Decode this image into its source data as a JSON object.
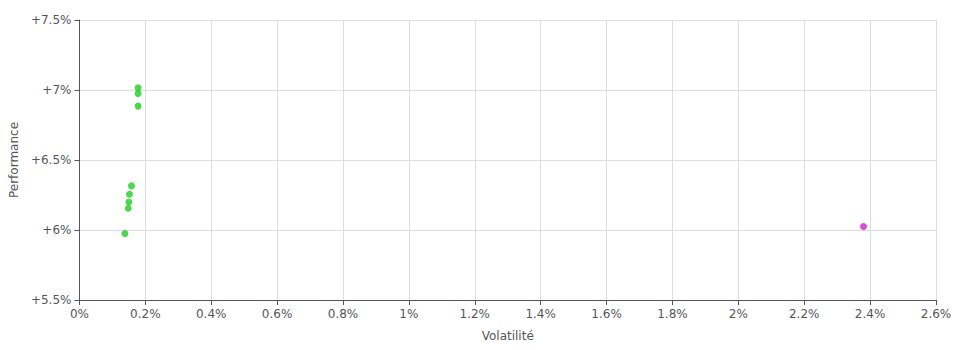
{
  "chart_data": {
    "type": "scatter",
    "xlabel": "Volatilité",
    "ylabel": "Performance",
    "xlim": [
      0.0,
      0.026
    ],
    "ylim": [
      0.055,
      0.075
    ],
    "xticks": [
      {
        "value": 0.0,
        "label": "0%"
      },
      {
        "value": 0.002,
        "label": "0.2%"
      },
      {
        "value": 0.004,
        "label": "0.4%"
      },
      {
        "value": 0.006,
        "label": "0.6%"
      },
      {
        "value": 0.008,
        "label": "0.8%"
      },
      {
        "value": 0.01,
        "label": "1%"
      },
      {
        "value": 0.012,
        "label": "1.2%"
      },
      {
        "value": 0.014,
        "label": "1.4%"
      },
      {
        "value": 0.016,
        "label": "1.6%"
      },
      {
        "value": 0.018,
        "label": "1.8%"
      },
      {
        "value": 0.02,
        "label": "2%"
      },
      {
        "value": 0.022,
        "label": "2.2%"
      },
      {
        "value": 0.024,
        "label": "2.4%"
      },
      {
        "value": 0.026,
        "label": "2.6%"
      }
    ],
    "yticks": [
      {
        "value": 0.055,
        "label": "+5.5%"
      },
      {
        "value": 0.06,
        "label": "+6%"
      },
      {
        "value": 0.065,
        "label": "+6.5%"
      },
      {
        "value": 0.07,
        "label": "+7%"
      },
      {
        "value": 0.075,
        "label": "+7.5%"
      }
    ],
    "grid": true,
    "marker": "circle",
    "series": [
      {
        "color": "#22cc22",
        "x": [
          0.00178,
          0.00178,
          0.00178,
          0.00158,
          0.00152,
          0.0015,
          0.00148,
          0.00138
        ],
        "values": [
          0.07015,
          0.06975,
          0.06885,
          0.06315,
          0.06255,
          0.062,
          0.06155,
          0.05975
        ]
      },
      {
        "color": "#cc22cc",
        "x": [
          0.0238
        ],
        "values": [
          0.06025
        ]
      }
    ]
  }
}
